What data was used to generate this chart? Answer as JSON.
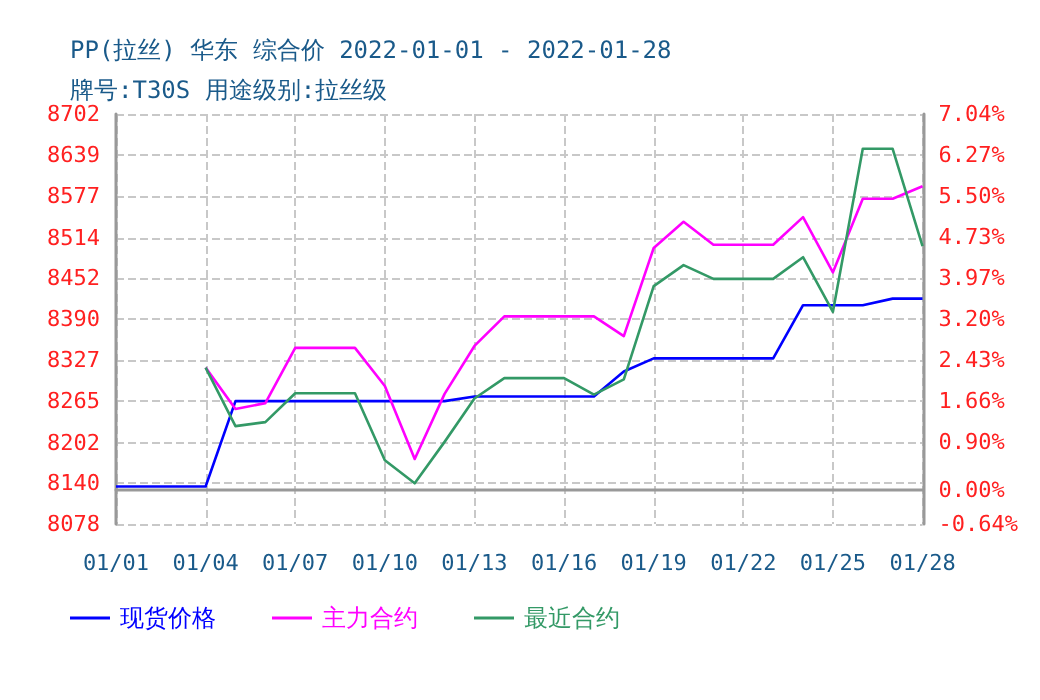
{
  "chart_data": {
    "type": "line",
    "title": "PP(拉丝) 华东 综合价 2022-01-01 - 2022-01-28",
    "subtitle": "牌号:T30S 用途级别:拉丝级",
    "x": [
      "2022-01-01",
      "2022-01-02",
      "2022-01-03",
      "2022-01-04",
      "2022-01-05",
      "2022-01-06",
      "2022-01-07",
      "2022-01-08",
      "2022-01-09",
      "2022-01-10",
      "2022-01-11",
      "2022-01-12",
      "2022-01-13",
      "2022-01-14",
      "2022-01-15",
      "2022-01-16",
      "2022-01-17",
      "2022-01-18",
      "2022-01-19",
      "2022-01-20",
      "2022-01-21",
      "2022-01-22",
      "2022-01-23",
      "2022-01-24",
      "2022-01-25",
      "2022-01-26",
      "2022-01-27",
      "2022-01-28"
    ],
    "series": [
      {
        "name": "现货价格",
        "color": "#0000ff",
        "values": [
          8135,
          8135,
          8135,
          8135,
          8265,
          8265,
          8265,
          8265,
          8265,
          8265,
          8265,
          8265,
          8272,
          8272,
          8272,
          8272,
          8272,
          8310,
          8330,
          8330,
          8330,
          8330,
          8330,
          8411,
          8411,
          8411,
          8421,
          8421
        ]
      },
      {
        "name": "主力合约",
        "color": "#ff00ff",
        "values": [
          null,
          null,
          null,
          8316,
          8253,
          8262,
          8346,
          8346,
          8346,
          8288,
          8177,
          8276,
          8349,
          8394,
          8394,
          8394,
          8394,
          8364,
          8498,
          8538,
          8503,
          8503,
          8503,
          8545,
          8461,
          8573,
          8573,
          8592
        ]
      },
      {
        "name": "最近合约",
        "color": "#339966",
        "values": [
          null,
          null,
          null,
          8316,
          8227,
          8233,
          8277,
          8277,
          8277,
          8175,
          8140,
          8203,
          8269,
          8300,
          8300,
          8300,
          8275,
          8298,
          8440,
          8472,
          8451,
          8451,
          8451,
          8484,
          8401,
          8649,
          8649,
          8501
        ]
      }
    ],
    "xlim": [
      "2022-01-01",
      "2022-01-28"
    ],
    "xticks": [
      {
        "value": "2022-01-01",
        "label": "01/01"
      },
      {
        "value": "2022-01-04",
        "label": "01/04"
      },
      {
        "value": "2022-01-07",
        "label": "01/07"
      },
      {
        "value": "2022-01-10",
        "label": "01/10"
      },
      {
        "value": "2022-01-13",
        "label": "01/13"
      },
      {
        "value": "2022-01-16",
        "label": "01/16"
      },
      {
        "value": "2022-01-19",
        "label": "01/19"
      },
      {
        "value": "2022-01-22",
        "label": "01/22"
      },
      {
        "value": "2022-01-25",
        "label": "01/25"
      },
      {
        "value": "2022-01-28",
        "label": "01/28"
      }
    ],
    "ylim": [
      8078,
      8702
    ],
    "yticks": [
      8078,
      8140,
      8202,
      8265,
      8327,
      8390,
      8452,
      8514,
      8577,
      8639,
      8702
    ],
    "y2lim": [
      -0.64,
      7.04
    ],
    "y2ticks": [
      {
        "value": -0.64,
        "label": "-0.64%"
      },
      {
        "value": 0,
        "label": "0.00%"
      },
      {
        "value": 0.9,
        "label": "0.90%"
      },
      {
        "value": 1.66,
        "label": "1.66%"
      },
      {
        "value": 2.43,
        "label": "2.43%"
      },
      {
        "value": 3.2,
        "label": "3.20%"
      },
      {
        "value": 3.97,
        "label": "3.97%"
      },
      {
        "value": 4.73,
        "label": "4.73%"
      },
      {
        "value": 5.5,
        "label": "5.50%"
      },
      {
        "value": 6.27,
        "label": "6.27%"
      },
      {
        "value": 7.04,
        "label": "7.04%"
      }
    ],
    "grid": true,
    "legend": "bottom",
    "marker": "none",
    "line_style": "solid"
  }
}
